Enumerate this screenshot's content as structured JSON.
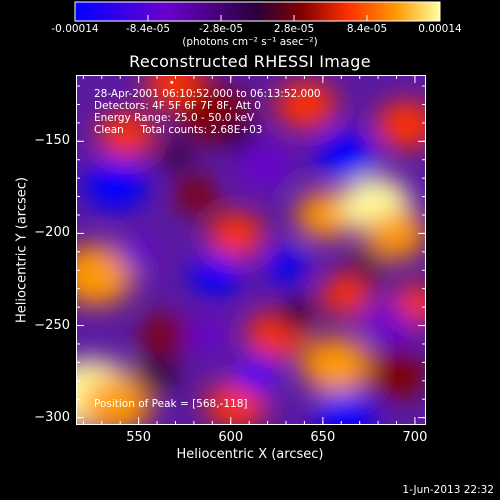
{
  "colorbar": {
    "ticks": [
      "-0.00014",
      "-8.4e-05",
      "-2.8e-05",
      "2.8e-05",
      "8.4e-05",
      "0.00014"
    ],
    "units": "(photons cm⁻² s⁻¹ asec⁻²)"
  },
  "title": "Reconstructed RHESSI Image",
  "info": {
    "line1": "28-Apr-2001 06:10:52.000 to 06:13:52.000",
    "line2": "Detectors: 4F 5F 6F 7F 8F, Att 0",
    "line3": "Energy Range: 25.0 - 50.0 keV",
    "line4": "Clean     Total counts: 2.68E+03",
    "peak": "Position of Peak = [568,-118]"
  },
  "footer_date": "1-Jun-2013 22:32",
  "chart_data": {
    "type": "heatmap",
    "title": "Reconstructed RHESSI Image",
    "xlabel": "Heliocentric X (arcsec)",
    "ylabel": "Heliocentric Y (arcsec)",
    "xticks": [
      "550",
      "600",
      "650",
      "700"
    ],
    "yticks": [
      "-150",
      "-200",
      "-250",
      "-300"
    ],
    "xlim": [
      516,
      706
    ],
    "ylim": [
      -304,
      -114
    ],
    "colorbar_range": [
      -0.00014,
      0.00014
    ],
    "colormap": [
      "#0000ff",
      "#6a00d0",
      "#2a0038",
      "#800000",
      "#ff3000",
      "#ff9a00",
      "#ffffa0"
    ],
    "peak_position": [
      568,
      -118
    ]
  }
}
